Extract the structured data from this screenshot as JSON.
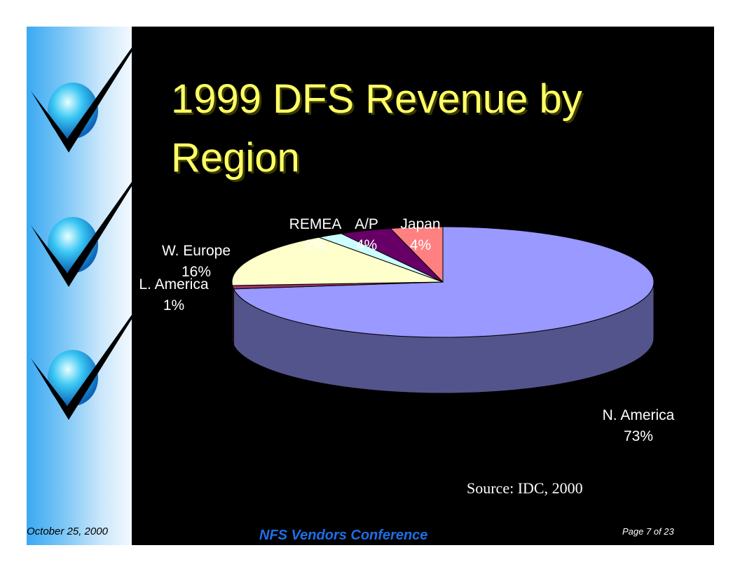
{
  "slide": {
    "title": "1999 DFS Revenue by Region",
    "source": "Source: IDC, 2000",
    "footer": {
      "date": "October 25, 2000",
      "conference": "NFS Vendors Conference",
      "page": "Page 7 of 23"
    }
  },
  "chart_data": {
    "type": "pie",
    "title": "",
    "style": "3d-exploded-none",
    "slices": [
      {
        "label": "N. America",
        "value": 73,
        "display": "73%",
        "color": "#9999ff"
      },
      {
        "label": "L. America",
        "value": 1,
        "display": "1%",
        "color": "#993366"
      },
      {
        "label": "W. Europe",
        "value": 16,
        "display": "16%",
        "color": "#ffffcc"
      },
      {
        "label": "REMEA",
        "value": 2,
        "display": "2%",
        "color": "#ccffff"
      },
      {
        "label": "A/P",
        "value": 4,
        "display": "4%",
        "color": "#660066"
      },
      {
        "label": "Japan",
        "value": 4,
        "display": "4%",
        "color": "#ff8080"
      }
    ]
  }
}
